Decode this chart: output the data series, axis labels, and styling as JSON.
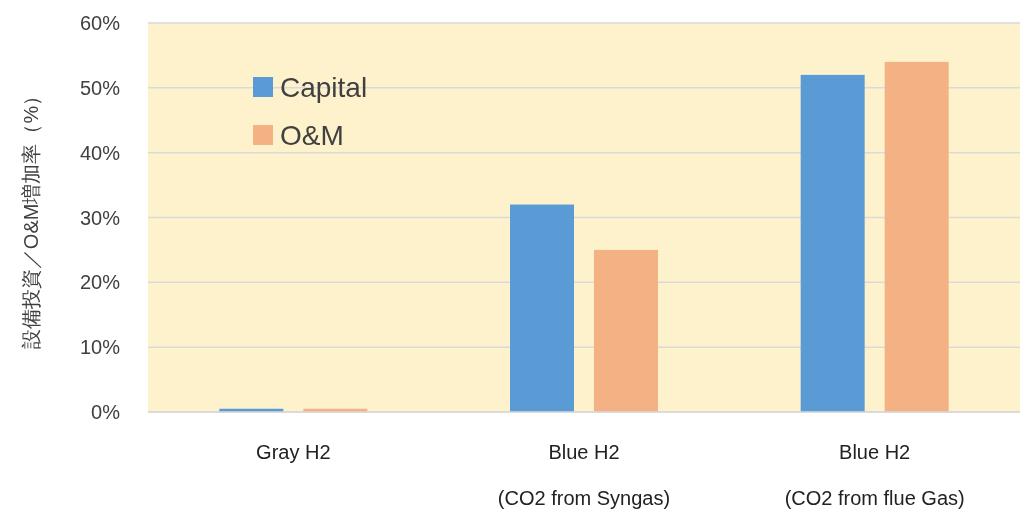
{
  "chart_data": {
    "type": "bar",
    "ylabel": "設備投資／O&M増加率（%）",
    "categories": [
      "Gray H2",
      "Blue H2\n(CO2 from Syngas)",
      "Blue H2\n(CO2 from flue Gas)"
    ],
    "series": [
      {
        "name": "Capital",
        "color": "#5b9bd5",
        "values": [
          0.5,
          32,
          52
        ]
      },
      {
        "name": "O&M",
        "color": "#f4b183",
        "values": [
          0.5,
          25,
          54
        ]
      }
    ],
    "ylim": [
      0,
      60
    ],
    "yticks": [
      {
        "value": 0,
        "label": "0%"
      },
      {
        "value": 10,
        "label": "10%"
      },
      {
        "value": 20,
        "label": "20%"
      },
      {
        "value": 30,
        "label": "30%"
      },
      {
        "value": 40,
        "label": "40%"
      },
      {
        "value": 50,
        "label": "50%"
      },
      {
        "value": 60,
        "label": "60%"
      }
    ],
    "grid": "y",
    "legend": "top left"
  }
}
